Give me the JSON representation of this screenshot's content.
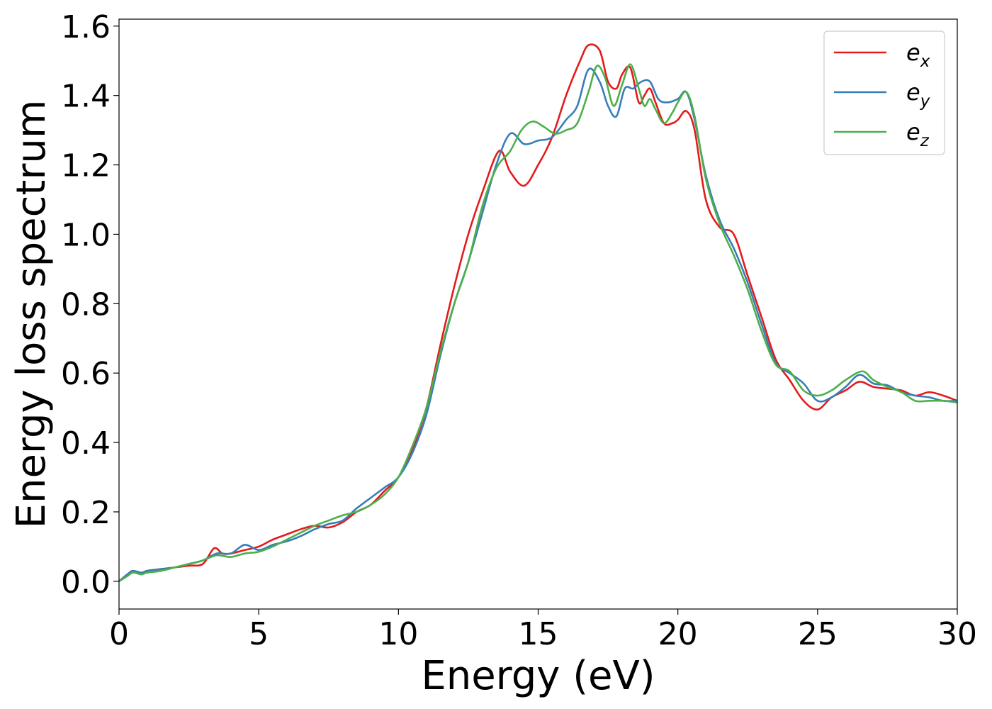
{
  "chart_data": {
    "type": "line",
    "title": "",
    "xlabel": "Energy (eV)",
    "ylabel": "Energy loss spectrum",
    "xlim": [
      0,
      30
    ],
    "ylim": [
      -0.08,
      1.62
    ],
    "xticks": [
      0,
      5,
      10,
      15,
      20,
      25,
      30
    ],
    "xtick_labels": [
      "0",
      "5",
      "10",
      "15",
      "20",
      "25",
      "30"
    ],
    "yticks": [
      0.0,
      0.2,
      0.4,
      0.6,
      0.8,
      1.0,
      1.2,
      1.4,
      1.6
    ],
    "ytick_labels": [
      "0.0",
      "0.2",
      "0.4",
      "0.6",
      "0.8",
      "1.0",
      "1.2",
      "1.4",
      "1.6"
    ],
    "grid": false,
    "legend_position": "top-right",
    "series": [
      {
        "name": "e_x",
        "legend_base": "e",
        "legend_sub": "x",
        "color": "#e41a1c",
        "x": [
          0,
          0.3,
          0.5,
          0.8,
          1.0,
          1.5,
          2.0,
          2.5,
          3.0,
          3.4,
          3.7,
          4.0,
          4.5,
          5.0,
          5.5,
          6.0,
          6.5,
          7.0,
          7.5,
          8.0,
          8.5,
          9.0,
          9.5,
          10.0,
          10.5,
          11.0,
          11.5,
          12.0,
          12.5,
          13.0,
          13.6,
          14.0,
          14.5,
          15.0,
          15.5,
          16.0,
          16.5,
          16.8,
          17.2,
          17.5,
          17.8,
          18.0,
          18.3,
          18.6,
          18.8,
          19.0,
          19.2,
          19.5,
          19.8,
          20.0,
          20.3,
          20.6,
          21.0,
          21.5,
          22.0,
          22.5,
          23.0,
          23.5,
          24.0,
          24.5,
          25.0,
          25.5,
          26.0,
          26.5,
          27.0,
          27.5,
          28.0,
          28.5,
          29.0,
          29.5,
          30.0
        ],
        "y": [
          0.0,
          0.02,
          0.03,
          0.02,
          0.03,
          0.035,
          0.04,
          0.045,
          0.05,
          0.095,
          0.08,
          0.08,
          0.09,
          0.1,
          0.12,
          0.135,
          0.15,
          0.16,
          0.155,
          0.17,
          0.2,
          0.22,
          0.26,
          0.3,
          0.38,
          0.5,
          0.68,
          0.85,
          1.0,
          1.12,
          1.24,
          1.18,
          1.14,
          1.2,
          1.28,
          1.4,
          1.5,
          1.545,
          1.53,
          1.44,
          1.42,
          1.46,
          1.48,
          1.38,
          1.4,
          1.42,
          1.38,
          1.32,
          1.32,
          1.33,
          1.355,
          1.3,
          1.1,
          1.02,
          1.0,
          0.88,
          0.76,
          0.64,
          0.58,
          0.52,
          0.495,
          0.53,
          0.55,
          0.575,
          0.56,
          0.555,
          0.55,
          0.535,
          0.545,
          0.535,
          0.52
        ]
      },
      {
        "name": "e_y",
        "legend_base": "e",
        "legend_sub": "y",
        "color": "#377eb8",
        "x": [
          0,
          0.3,
          0.5,
          0.8,
          1.0,
          1.5,
          2.0,
          2.5,
          3.0,
          3.5,
          4.0,
          4.5,
          5.0,
          5.5,
          6.0,
          6.5,
          7.0,
          7.5,
          8.0,
          8.5,
          9.0,
          9.5,
          10.0,
          10.5,
          11.0,
          11.5,
          12.0,
          12.5,
          13.0,
          13.5,
          14.0,
          14.5,
          15.0,
          15.5,
          16.0,
          16.4,
          16.8,
          17.2,
          17.5,
          17.8,
          18.1,
          18.4,
          18.7,
          19.0,
          19.3,
          19.6,
          20.0,
          20.3,
          20.6,
          21.0,
          21.5,
          22.0,
          22.5,
          23.0,
          23.5,
          24.0,
          24.5,
          25.0,
          25.5,
          26.0,
          26.5,
          27.0,
          27.5,
          28.0,
          28.5,
          29.0,
          29.5,
          30.0
        ],
        "y": [
          0.0,
          0.02,
          0.03,
          0.025,
          0.03,
          0.035,
          0.04,
          0.05,
          0.06,
          0.08,
          0.08,
          0.105,
          0.09,
          0.105,
          0.115,
          0.13,
          0.15,
          0.165,
          0.175,
          0.21,
          0.24,
          0.27,
          0.3,
          0.37,
          0.48,
          0.65,
          0.8,
          0.92,
          1.06,
          1.2,
          1.29,
          1.26,
          1.27,
          1.28,
          1.33,
          1.37,
          1.475,
          1.44,
          1.37,
          1.34,
          1.42,
          1.42,
          1.44,
          1.44,
          1.39,
          1.38,
          1.39,
          1.41,
          1.33,
          1.17,
          1.04,
          0.96,
          0.86,
          0.74,
          0.63,
          0.6,
          0.57,
          0.52,
          0.53,
          0.56,
          0.595,
          0.57,
          0.565,
          0.545,
          0.535,
          0.53,
          0.52,
          0.52
        ]
      },
      {
        "name": "e_z",
        "legend_base": "e",
        "legend_sub": "z",
        "color": "#4daf4a",
        "x": [
          0,
          0.3,
          0.5,
          0.8,
          1.0,
          1.5,
          2.0,
          2.5,
          3.0,
          3.5,
          4.0,
          4.5,
          5.0,
          5.5,
          6.0,
          6.5,
          7.0,
          7.5,
          8.0,
          8.5,
          9.0,
          9.5,
          10.0,
          10.5,
          11.0,
          11.5,
          12.0,
          12.5,
          13.0,
          13.5,
          14.0,
          14.4,
          14.8,
          15.2,
          15.6,
          16.0,
          16.4,
          16.8,
          17.1,
          17.4,
          17.7,
          18.0,
          18.3,
          18.6,
          18.8,
          19.0,
          19.2,
          19.5,
          19.8,
          20.0,
          20.3,
          20.6,
          21.0,
          21.5,
          22.0,
          22.5,
          23.0,
          23.5,
          24.0,
          24.5,
          25.0,
          25.5,
          26.0,
          26.6,
          27.0,
          27.5,
          28.0,
          28.5,
          29.0,
          29.5,
          30.0
        ],
        "y": [
          0.0,
          0.015,
          0.025,
          0.02,
          0.025,
          0.03,
          0.04,
          0.05,
          0.06,
          0.075,
          0.07,
          0.08,
          0.085,
          0.1,
          0.12,
          0.14,
          0.16,
          0.175,
          0.19,
          0.2,
          0.22,
          0.25,
          0.3,
          0.39,
          0.5,
          0.66,
          0.8,
          0.92,
          1.08,
          1.19,
          1.24,
          1.3,
          1.325,
          1.31,
          1.29,
          1.3,
          1.32,
          1.41,
          1.485,
          1.45,
          1.37,
          1.43,
          1.49,
          1.42,
          1.37,
          1.39,
          1.36,
          1.32,
          1.35,
          1.38,
          1.41,
          1.34,
          1.16,
          1.03,
          0.94,
          0.84,
          0.72,
          0.625,
          0.605,
          0.55,
          0.535,
          0.55,
          0.58,
          0.605,
          0.58,
          0.56,
          0.545,
          0.52,
          0.52,
          0.52,
          0.515
        ]
      }
    ]
  }
}
